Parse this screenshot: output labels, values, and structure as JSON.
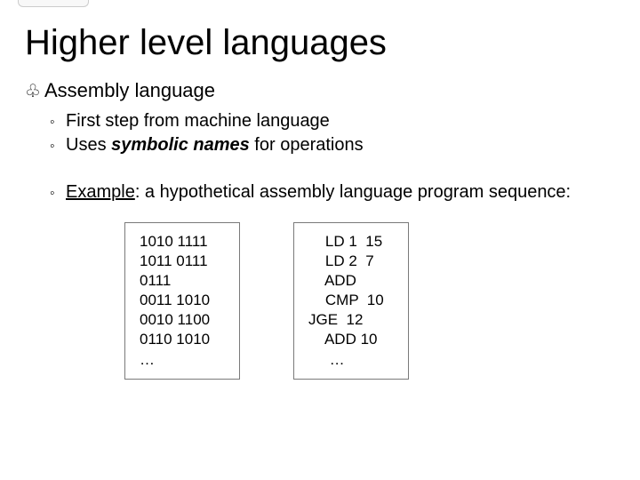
{
  "title": "Higher level languages",
  "section_heading": "Assembly language",
  "bullet_symbol_level1": "♧",
  "bullet_symbol_level2": "◦",
  "bullets": {
    "b1": "First step from machine language",
    "b2_pre": "Uses ",
    "b2_emph": "symbolic names",
    "b2_post": " for operations",
    "b3_label": "Example",
    "b3_rest": ": a hypothetical assembly language program sequence:"
  },
  "box_left": "1010 1111\n1011 0111\n0111\n0011 1010\n0010 1100\n0110 1010\n…",
  "box_right": "    LD 1  15\n    LD 2  7\n    ADD\n    CMP  10\nJGE  12\n    ADD 10\n     …",
  "colors": {
    "text": "#000000",
    "background": "#ffffff",
    "box_border": "#7a7a7a"
  }
}
